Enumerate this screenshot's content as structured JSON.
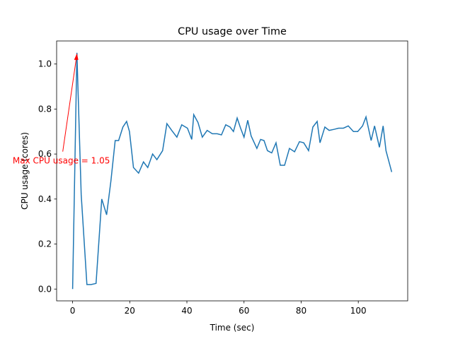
{
  "chart_data": {
    "type": "line",
    "title": "CPU usage over Time",
    "xlabel": "Time (sec)",
    "ylabel": "CPU usage (cores)",
    "annotation": "Max CPU usage = 1.05",
    "x": [
      0,
      1.5,
      3.0,
      5.0,
      6.5,
      8.2,
      10.2,
      11.9,
      13.4,
      14.9,
      16.1,
      17.6,
      18.9,
      19.9,
      21.3,
      23.1,
      24.8,
      26.3,
      28.0,
      29.5,
      31.5,
      33.0,
      34.7,
      36.5,
      38.2,
      40.2,
      41.7,
      42.4,
      43.9,
      45.4,
      47.1,
      48.9,
      50.6,
      52.1,
      53.6,
      55.1,
      56.3,
      57.6,
      58.8,
      60.0,
      61.3,
      62.5,
      64.5,
      65.8,
      67.0,
      68.2,
      69.7,
      71.2,
      72.7,
      74.2,
      75.9,
      77.7,
      79.4,
      80.9,
      82.6,
      84.1,
      85.6,
      86.6,
      88.3,
      89.8,
      91.6,
      93.1,
      94.8,
      96.5,
      98.3,
      99.8,
      101.5,
      102.7,
      104.5,
      105.7,
      107.4,
      108.7,
      109.7,
      111.7
    ],
    "series": [
      {
        "name": "CPU usage",
        "color": "#1f77b4",
        "values": [
          0,
          1.05,
          0.42,
          0.02,
          0.02,
          0.025,
          0.4,
          0.33,
          0.48,
          0.66,
          0.66,
          0.72,
          0.745,
          0.7,
          0.54,
          0.515,
          0.565,
          0.54,
          0.6,
          0.575,
          0.615,
          0.735,
          0.705,
          0.675,
          0.73,
          0.715,
          0.665,
          0.775,
          0.74,
          0.675,
          0.705,
          0.69,
          0.69,
          0.685,
          0.73,
          0.72,
          0.7,
          0.76,
          0.715,
          0.675,
          0.75,
          0.68,
          0.625,
          0.665,
          0.66,
          0.615,
          0.605,
          0.65,
          0.55,
          0.55,
          0.625,
          0.61,
          0.655,
          0.65,
          0.615,
          0.72,
          0.745,
          0.65,
          0.72,
          0.705,
          0.71,
          0.715,
          0.715,
          0.725,
          0.7,
          0.7,
          0.725,
          0.765,
          0.66,
          0.725,
          0.63,
          0.725,
          0.615,
          0.52
        ]
      }
    ],
    "annotation_color": "#ff0000",
    "xlim": [
      -5.6,
      117.3
    ],
    "ylim": [
      -0.0525,
      1.1025
    ],
    "xticks": [
      0,
      20,
      40,
      60,
      80,
      100
    ],
    "yticks": [
      {
        "value": 0,
        "label": "0.0"
      },
      0.2,
      0.4,
      0.6,
      0.8,
      {
        "value": 1,
        "label": "1.0"
      }
    ]
  }
}
